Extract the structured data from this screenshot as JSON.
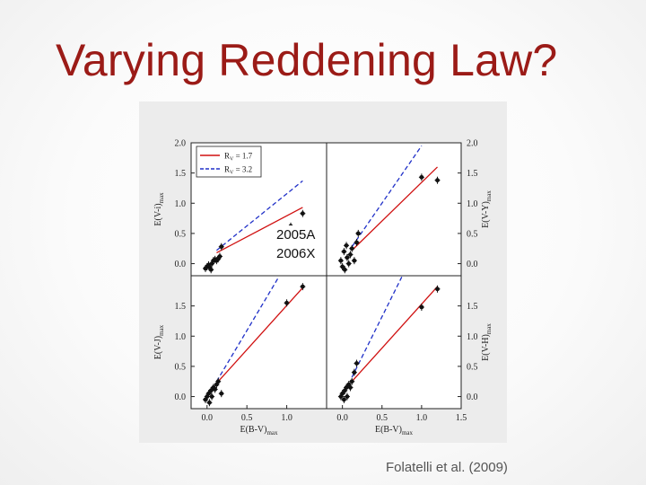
{
  "slide": {
    "title": "Varying Reddening Law?",
    "citation": "Folatelli et al. (2009)"
  },
  "overlay": {
    "line1": "2005A",
    "line2": "2006X"
  },
  "colors": {
    "title": "#9b1b17",
    "rv17": "#d01010",
    "rv32": "#2030c8",
    "points": "#111111"
  },
  "chart_data": [
    {
      "type": "scatter",
      "panel": "top-left",
      "ylabel": "E(V-i)",
      "ylabel_sub": "max",
      "ylim": [
        -0.2,
        2.0
      ],
      "xlim": [
        -0.2,
        1.5
      ],
      "ytick_labels": [
        "0.0",
        "0.5",
        "1.0",
        "1.5",
        "2.0"
      ],
      "ytick_values": [
        0.0,
        0.5,
        1.0,
        1.5,
        2.0
      ],
      "legend": [
        {
          "label": "R",
          "sub": "V",
          "value": " = 1.7",
          "color": "#d01010",
          "dash": false
        },
        {
          "label": "R",
          "sub": "V",
          "value": " = 3.2",
          "color": "#2030c8",
          "dash": true
        }
      ],
      "lines": [
        {
          "name": "RV=1.7",
          "x": [
            0.12,
            1.2
          ],
          "y": [
            0.18,
            0.93
          ]
        },
        {
          "name": "RV=3.2",
          "x": [
            0.12,
            1.2
          ],
          "y": [
            0.22,
            1.37
          ]
        }
      ],
      "points": [
        [
          -0.02,
          -0.08
        ],
        [
          0.0,
          -0.05
        ],
        [
          0.02,
          -0.02
        ],
        [
          0.03,
          -0.06
        ],
        [
          0.05,
          -0.1
        ],
        [
          0.06,
          0.0
        ],
        [
          0.08,
          0.05
        ],
        [
          0.1,
          0.07
        ],
        [
          0.12,
          0.05
        ],
        [
          0.14,
          0.08
        ],
        [
          0.18,
          0.28
        ],
        [
          0.16,
          0.12
        ],
        [
          1.05,
          0.62
        ],
        [
          1.2,
          0.83
        ]
      ]
    },
    {
      "type": "scatter",
      "panel": "top-right",
      "ylabel": "E(V-Y)",
      "ylabel_sub": "max",
      "ylim": [
        -0.2,
        2.0
      ],
      "xlim": [
        -0.2,
        1.5
      ],
      "ytick_labels": [
        "0.0",
        "0.5",
        "1.0",
        "1.5",
        "2.0"
      ],
      "ytick_values": [
        0.0,
        0.5,
        1.0,
        1.5,
        2.0
      ],
      "lines": [
        {
          "name": "RV=1.7",
          "x": [
            0.12,
            1.2
          ],
          "y": [
            0.22,
            1.6
          ]
        },
        {
          "name": "RV=3.2",
          "x": [
            0.12,
            1.0
          ],
          "y": [
            0.28,
            1.95
          ]
        }
      ],
      "points": [
        [
          -0.02,
          0.05
        ],
        [
          0.0,
          -0.05
        ],
        [
          0.02,
          0.2
        ],
        [
          0.03,
          -0.1
        ],
        [
          0.05,
          0.3
        ],
        [
          0.06,
          0.1
        ],
        [
          0.08,
          0.0
        ],
        [
          0.1,
          0.15
        ],
        [
          0.12,
          0.25
        ],
        [
          0.15,
          0.05
        ],
        [
          0.18,
          0.35
        ],
        [
          0.2,
          0.5
        ],
        [
          1.0,
          1.43
        ],
        [
          1.2,
          1.38
        ]
      ]
    },
    {
      "type": "scatter",
      "panel": "bottom-left",
      "xlabel": "E(B-V)",
      "xlabel_sub": "max",
      "ylabel": "E(V-J)",
      "ylabel_sub": "max",
      "ylim": [
        -0.2,
        2.0
      ],
      "xlim": [
        -0.2,
        1.5
      ],
      "xtick_labels": [
        "0.0",
        "0.5",
        "1.0"
      ],
      "xtick_values": [
        0.0,
        0.5,
        1.0
      ],
      "ytick_labels": [
        "0.0",
        "0.5",
        "1.0",
        "1.5"
      ],
      "ytick_values": [
        0.0,
        0.5,
        1.0,
        1.5
      ],
      "lines": [
        {
          "name": "RV=1.7",
          "x": [
            0.12,
            1.2
          ],
          "y": [
            0.22,
            1.8
          ]
        },
        {
          "name": "RV=3.2",
          "x": [
            0.12,
            0.9
          ],
          "y": [
            0.25,
            1.98
          ]
        }
      ],
      "points": [
        [
          -0.02,
          -0.05
        ],
        [
          0.0,
          0.0
        ],
        [
          0.02,
          0.05
        ],
        [
          0.03,
          -0.1
        ],
        [
          0.05,
          0.1
        ],
        [
          0.06,
          0.0
        ],
        [
          0.08,
          0.15
        ],
        [
          0.1,
          0.12
        ],
        [
          0.12,
          0.2
        ],
        [
          0.14,
          0.25
        ],
        [
          0.18,
          0.05
        ],
        [
          1.0,
          1.55
        ],
        [
          1.2,
          1.82
        ]
      ]
    },
    {
      "type": "scatter",
      "panel": "bottom-right",
      "xlabel": "E(B-V)",
      "xlabel_sub": "max",
      "ylabel": "E(V-H)",
      "ylabel_sub": "max",
      "ylim": [
        -0.2,
        2.0
      ],
      "xlim": [
        -0.2,
        1.5
      ],
      "xtick_labels": [
        "0.0",
        "0.5",
        "1.0",
        "1.5"
      ],
      "xtick_values": [
        0.0,
        0.5,
        1.0,
        1.5
      ],
      "ytick_labels": [
        "0.0",
        "0.5",
        "1.0",
        "1.5"
      ],
      "ytick_values": [
        0.0,
        0.5,
        1.0,
        1.5
      ],
      "lines": [
        {
          "name": "RV=1.7",
          "x": [
            0.12,
            1.2
          ],
          "y": [
            0.25,
            1.82
          ]
        },
        {
          "name": "RV=3.2",
          "x": [
            0.12,
            0.75
          ],
          "y": [
            0.32,
            1.98
          ]
        }
      ],
      "points": [
        [
          -0.02,
          0.0
        ],
        [
          0.0,
          0.05
        ],
        [
          0.02,
          -0.05
        ],
        [
          0.03,
          0.1
        ],
        [
          0.05,
          0.15
        ],
        [
          0.06,
          0.0
        ],
        [
          0.08,
          0.2
        ],
        [
          0.1,
          0.15
        ],
        [
          0.12,
          0.25
        ],
        [
          0.15,
          0.4
        ],
        [
          0.18,
          0.55
        ],
        [
          1.0,
          1.48
        ],
        [
          1.2,
          1.78
        ]
      ]
    }
  ]
}
